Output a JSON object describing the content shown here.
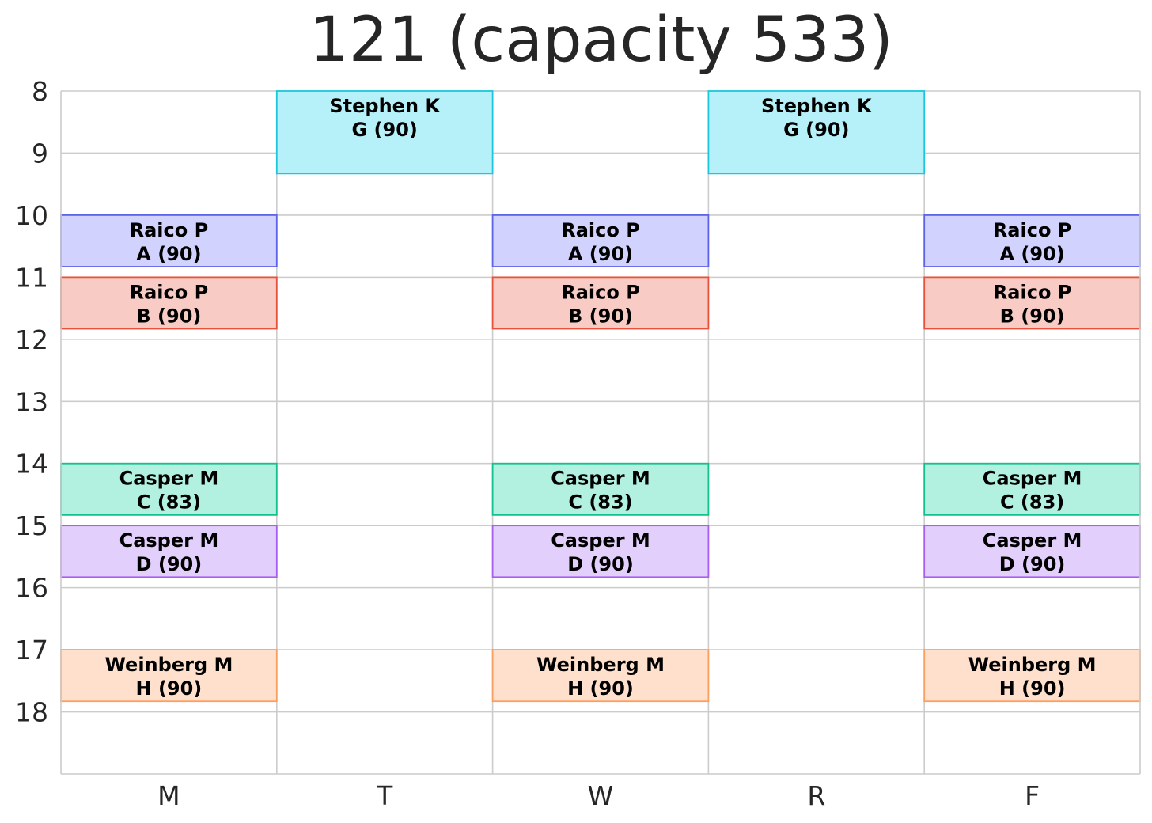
{
  "chart_data": {
    "type": "timetable",
    "title": "121 (capacity 533)",
    "days": [
      "M",
      "T",
      "W",
      "R",
      "F"
    ],
    "y_ticks": [
      8,
      9,
      10,
      11,
      12,
      13,
      14,
      15,
      16,
      17,
      18
    ],
    "ylim": [
      8,
      19
    ],
    "y_inverted": true,
    "grid": true,
    "events": [
      {
        "day": "T",
        "start": 8.0,
        "end": 9.33,
        "instructor": "Stephen K",
        "section": "G (90)",
        "fill": "#b6f0f8",
        "stroke": "#1cc7dd"
      },
      {
        "day": "R",
        "start": 8.0,
        "end": 9.33,
        "instructor": "Stephen K",
        "section": "G (90)",
        "fill": "#b6f0f8",
        "stroke": "#1cc7dd"
      },
      {
        "day": "M",
        "start": 10.0,
        "end": 10.83,
        "instructor": "Raico P",
        "section": "A (90)",
        "fill": "#d1d3fe",
        "stroke": "#5d63e6"
      },
      {
        "day": "W",
        "start": 10.0,
        "end": 10.83,
        "instructor": "Raico P",
        "section": "A (90)",
        "fill": "#d1d3fe",
        "stroke": "#5d63e6"
      },
      {
        "day": "F",
        "start": 10.0,
        "end": 10.83,
        "instructor": "Raico P",
        "section": "A (90)",
        "fill": "#d1d3fe",
        "stroke": "#5d63e6"
      },
      {
        "day": "M",
        "start": 11.0,
        "end": 11.83,
        "instructor": "Raico P",
        "section": "B (90)",
        "fill": "#f8cbc4",
        "stroke": "#e8523c"
      },
      {
        "day": "W",
        "start": 11.0,
        "end": 11.83,
        "instructor": "Raico P",
        "section": "B (90)",
        "fill": "#f8cbc4",
        "stroke": "#e8523c"
      },
      {
        "day": "F",
        "start": 11.0,
        "end": 11.83,
        "instructor": "Raico P",
        "section": "B (90)",
        "fill": "#f8cbc4",
        "stroke": "#e8523c"
      },
      {
        "day": "M",
        "start": 14.0,
        "end": 14.83,
        "instructor": "Casper M",
        "section": "C (83)",
        "fill": "#b2f0df",
        "stroke": "#13c18e"
      },
      {
        "day": "W",
        "start": 14.0,
        "end": 14.83,
        "instructor": "Casper M",
        "section": "C (83)",
        "fill": "#b2f0df",
        "stroke": "#13c18e"
      },
      {
        "day": "F",
        "start": 14.0,
        "end": 14.83,
        "instructor": "Casper M",
        "section": "C (83)",
        "fill": "#b2f0df",
        "stroke": "#13c18e"
      },
      {
        "day": "M",
        "start": 15.0,
        "end": 15.83,
        "instructor": "Casper M",
        "section": "D (90)",
        "fill": "#e3cffc",
        "stroke": "#a65ff0"
      },
      {
        "day": "W",
        "start": 15.0,
        "end": 15.83,
        "instructor": "Casper M",
        "section": "D (90)",
        "fill": "#e3cffc",
        "stroke": "#a65ff0"
      },
      {
        "day": "F",
        "start": 15.0,
        "end": 15.83,
        "instructor": "Casper M",
        "section": "D (90)",
        "fill": "#e3cffc",
        "stroke": "#a65ff0"
      },
      {
        "day": "M",
        "start": 17.0,
        "end": 17.83,
        "instructor": "Weinberg M",
        "section": "H (90)",
        "fill": "#fee0cc",
        "stroke": "#fc9f5e"
      },
      {
        "day": "W",
        "start": 17.0,
        "end": 17.83,
        "instructor": "Weinberg M",
        "section": "H (90)",
        "fill": "#fee0cc",
        "stroke": "#fc9f5e"
      },
      {
        "day": "F",
        "start": 17.0,
        "end": 17.83,
        "instructor": "Weinberg M",
        "section": "H (90)",
        "fill": "#fee0cc",
        "stroke": "#fc9f5e"
      }
    ]
  }
}
